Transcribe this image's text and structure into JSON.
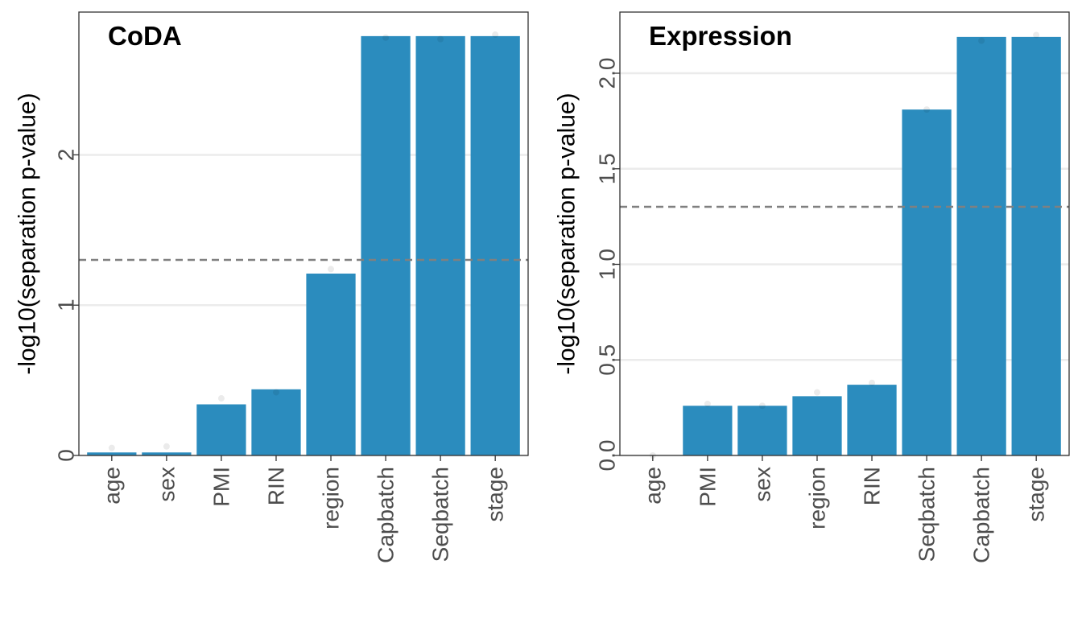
{
  "chart_data": [
    {
      "type": "bar",
      "title": "CoDA",
      "ylabel": "-log10(separation p-value)",
      "xlabel": "",
      "ylim": [
        0,
        2.95
      ],
      "yticks": [
        0,
        1,
        2
      ],
      "ytick_labels": [
        "0",
        "1",
        "2"
      ],
      "threshold": 1.301,
      "categories": [
        "age",
        "sex",
        "PMI",
        "RIN",
        "region",
        "Capbatch",
        "Seqbatch",
        "stage"
      ],
      "values": [
        0.02,
        0.02,
        0.34,
        0.44,
        1.21,
        2.79,
        2.79,
        2.79
      ],
      "points": [
        0.05,
        0.06,
        0.38,
        0.42,
        1.24,
        2.78,
        2.77,
        2.8
      ],
      "bar_color": "#2b8cbe",
      "grid": "horizontal major",
      "legend": "none"
    },
    {
      "type": "bar",
      "title": "Expression",
      "ylabel": "-log10(separation p-value)",
      "xlabel": "",
      "ylim": [
        0,
        2.32
      ],
      "yticks": [
        0,
        0.5,
        1,
        1.5,
        2
      ],
      "ytick_labels": [
        "0.0",
        "0.5",
        "1.0",
        "1.5",
        "2.0"
      ],
      "threshold": 1.301,
      "categories": [
        "age",
        "PMI",
        "sex",
        "region",
        "RIN",
        "Seqbatch",
        "Capbatch",
        "stage"
      ],
      "values": [
        0.0,
        0.26,
        0.26,
        0.31,
        0.37,
        1.81,
        2.19,
        2.19
      ],
      "points": [
        0.0,
        0.27,
        0.26,
        0.33,
        0.38,
        1.81,
        2.17,
        2.2
      ],
      "bar_color": "#2b8cbe",
      "grid": "horizontal major",
      "legend": "none"
    }
  ]
}
